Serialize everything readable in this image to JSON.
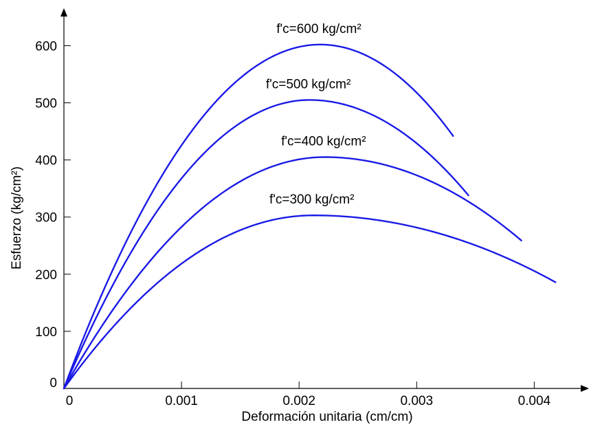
{
  "chart_data": {
    "type": "line",
    "xlabel": "Deformación unitaria (cm/cm)",
    "ylabel": "Esfuerzo (kg/cm²)",
    "xlim": [
      0,
      0.0046
    ],
    "ylim": [
      0,
      680
    ],
    "x_ticks": [
      0,
      0.001,
      0.002,
      0.003,
      0.004
    ],
    "x_tick_labels": [
      "0",
      "0.001",
      "0.002",
      "0.003",
      "0.004"
    ],
    "y_ticks": [
      0,
      100,
      200,
      300,
      400,
      500,
      600
    ],
    "y_tick_labels": [
      "0",
      "100",
      "200",
      "300",
      "400",
      "500",
      "600"
    ],
    "grid": false,
    "line_color": "#1a1ae6",
    "series": [
      {
        "name": "f'c=600 kg/cm²",
        "peak_stress": 602,
        "peak_strain": 0.00218,
        "end_strain": 0.00331,
        "end_stress": 442
      },
      {
        "name": "f'c=500 kg/cm²",
        "peak_stress": 505,
        "peak_strain": 0.00209,
        "end_strain": 0.00344,
        "end_stress": 338
      },
      {
        "name": "f'c=400 kg/cm²",
        "peak_stress": 405,
        "peak_strain": 0.00222,
        "end_strain": 0.00389,
        "end_stress": 259
      },
      {
        "name": "f'c=300 kg/cm²",
        "peak_stress": 303,
        "peak_strain": 0.00212,
        "end_strain": 0.00418,
        "end_stress": 186
      }
    ]
  }
}
